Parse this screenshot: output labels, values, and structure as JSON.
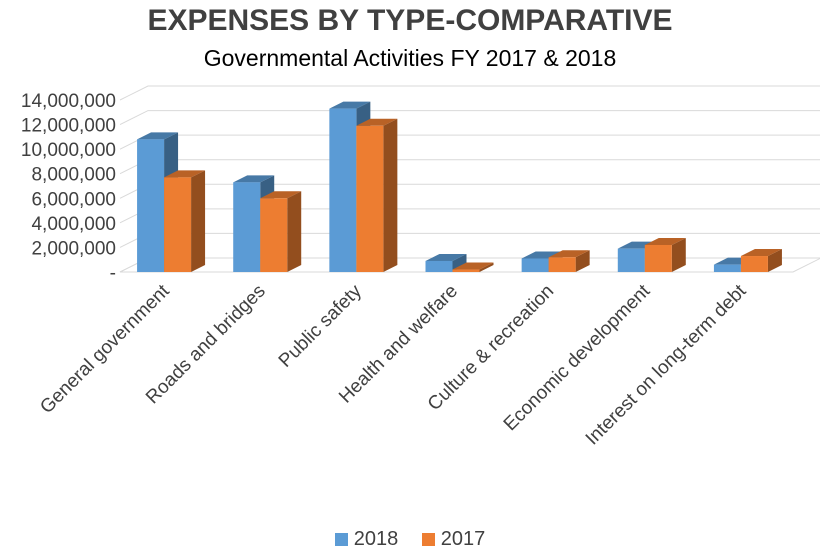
{
  "chart_data": {
    "type": "bar",
    "title": "EXPENSES BY TYPE-COMPARATIVE",
    "subtitle": "Governmental Activities FY 2017 & 2018",
    "categories": [
      "General government",
      "Roads and bridges",
      "Public safety",
      "Health and welfare",
      "Culture & recreation",
      "Economic development",
      "Interest on long-term debt"
    ],
    "series": [
      {
        "name": "2018",
        "color": "#5b9bd5",
        "values": [
          10800000,
          7300000,
          13300000,
          900000,
          1100000,
          1900000,
          600000
        ]
      },
      {
        "name": "2017",
        "color": "#ed7d31",
        "values": [
          7700000,
          6000000,
          11900000,
          200000,
          1200000,
          2200000,
          1300000
        ]
      }
    ],
    "y_ticks": [
      {
        "value": 14000000,
        "label": "14,000,000"
      },
      {
        "value": 12000000,
        "label": "12,000,000"
      },
      {
        "value": 10000000,
        "label": "10,000,000"
      },
      {
        "value": 8000000,
        "label": "8,000,000"
      },
      {
        "value": 6000000,
        "label": "6,000,000"
      },
      {
        "value": 4000000,
        "label": "4,000,000"
      },
      {
        "value": 2000000,
        "label": "2,000,000"
      },
      {
        "value": 0,
        "label": "-"
      }
    ],
    "ylim": [
      0,
      14000000
    ],
    "grid": true,
    "legend_position": "bottom",
    "style": "3d-clustered-column"
  }
}
